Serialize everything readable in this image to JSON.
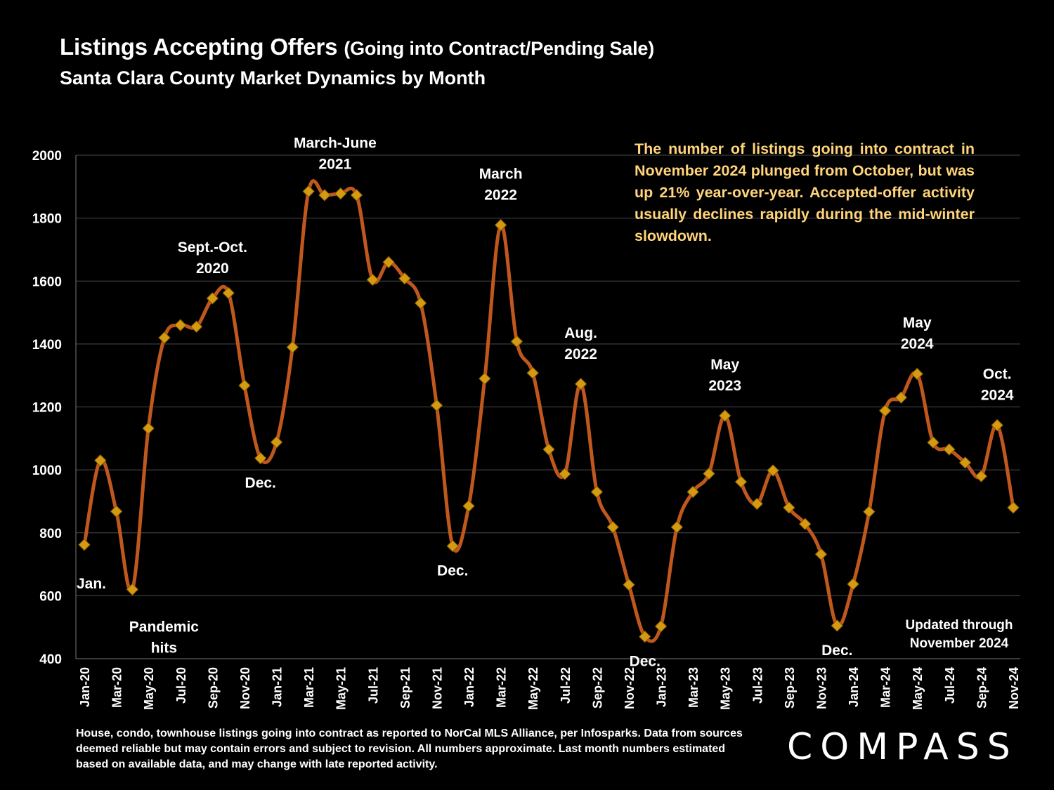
{
  "header": {
    "title": "Listings Accepting Offers",
    "title_paren": "(Going into Contract/Pending Sale)",
    "subtitle": "Santa Clara County Market Dynamics by Month"
  },
  "callout": "The number of listings going into contract in November 2024 plunged from October, but was up 21% year-over-year. Accepted-offer activity usually declines rapidly during the mid-winter slowdown.",
  "updated_note": [
    "Updated through",
    "November 2024"
  ],
  "footnote": "House, condo, townhouse listings going into contract as reported to NorCal MLS Alliance, per Infosparks. Data from sources deemed reliable but may contain errors and subject to revision. All numbers approximate. Last month numbers estimated based on available data, and may change with late reported activity.",
  "logo": "COMPASS",
  "colors": {
    "line": "#c0581e",
    "marker": "#d49a10",
    "callout": "#ffd47a",
    "grid": "#4a4a4a"
  },
  "chart_data": {
    "type": "line",
    "ylim": [
      400,
      2000
    ],
    "yticks": [
      400,
      600,
      800,
      1000,
      1200,
      1400,
      1600,
      1800,
      2000
    ],
    "grid": "horizontal",
    "x": [
      "Jan-20",
      "Feb-20",
      "Mar-20",
      "Apr-20",
      "May-20",
      "Jun-20",
      "Jul-20",
      "Aug-20",
      "Sep-20",
      "Oct-20",
      "Nov-20",
      "Dec-20",
      "Jan-21",
      "Feb-21",
      "Mar-21",
      "Apr-21",
      "May-21",
      "Jun-21",
      "Jul-21",
      "Aug-21",
      "Sep-21",
      "Oct-21",
      "Nov-21",
      "Dec-21",
      "Jan-22",
      "Feb-22",
      "Mar-22",
      "Apr-22",
      "May-22",
      "Jun-22",
      "Jul-22",
      "Aug-22",
      "Sep-22",
      "Oct-22",
      "Nov-22",
      "Dec-22",
      "Jan-23",
      "Feb-23",
      "Mar-23",
      "Apr-23",
      "May-23",
      "Jun-23",
      "Jul-23",
      "Aug-23",
      "Sep-23",
      "Oct-23",
      "Nov-23",
      "Dec-23",
      "Jan-24",
      "Feb-24",
      "Mar-24",
      "Apr-24",
      "May-24",
      "Jun-24",
      "Jul-24",
      "Aug-24",
      "Sep-24",
      "Oct-24",
      "Nov-24"
    ],
    "xtick_labels": [
      "Jan-20",
      "Mar-20",
      "May-20",
      "Jul-20",
      "Sep-20",
      "Nov-20",
      "Jan-21",
      "Mar-21",
      "May-21",
      "Jul-21",
      "Sep-21",
      "Nov-21",
      "Jan-22",
      "Mar-22",
      "May-22",
      "Jul-22",
      "Sep-22",
      "Nov-22",
      "Jan-23",
      "Mar-23",
      "May-23",
      "Jul-23",
      "Sep-23",
      "Nov-23",
      "Jan-24",
      "Mar-24",
      "May-24",
      "Jul-24",
      "Sep-24",
      "Nov-24"
    ],
    "values": [
      762,
      1030,
      868,
      620,
      1132,
      1420,
      1460,
      1455,
      1545,
      1562,
      1268,
      1037,
      1088,
      1390,
      1885,
      1873,
      1878,
      1873,
      1604,
      1660,
      1608,
      1530,
      1205,
      758,
      885,
      1290,
      1778,
      1408,
      1308,
      1065,
      987,
      1273,
      930,
      818,
      635,
      470,
      503,
      818,
      930,
      988,
      1172,
      962,
      892,
      998,
      880,
      828,
      732,
      505,
      637,
      867,
      1188,
      1230,
      1305,
      1087,
      1065,
      1023,
      980,
      1142,
      880
    ],
    "annotations": [
      {
        "text": "Jan.",
        "x": "Jan-20",
        "position": "below"
      },
      {
        "text": "Pandemic hits",
        "x": "Apr-20",
        "position": "below"
      },
      {
        "text": "Sept.-Oct. 2020",
        "x": "Sep-20",
        "position": "above"
      },
      {
        "text": "Dec.",
        "x": "Dec-20",
        "position": "below"
      },
      {
        "text": "March-June 2021",
        "x": "Apr-21",
        "position": "above"
      },
      {
        "text": "Dec.",
        "x": "Dec-21",
        "position": "below"
      },
      {
        "text": "March 2022",
        "x": "Mar-22",
        "position": "above"
      },
      {
        "text": "Aug. 2022",
        "x": "Aug-22",
        "position": "above"
      },
      {
        "text": "Dec.",
        "x": "Dec-22",
        "position": "below"
      },
      {
        "text": "May 2023",
        "x": "May-23",
        "position": "above"
      },
      {
        "text": "Dec.",
        "x": "Dec-23",
        "position": "below"
      },
      {
        "text": "May 2024",
        "x": "May-24",
        "position": "above"
      },
      {
        "text": "Oct. 2024",
        "x": "Oct-24",
        "position": "above"
      }
    ]
  }
}
